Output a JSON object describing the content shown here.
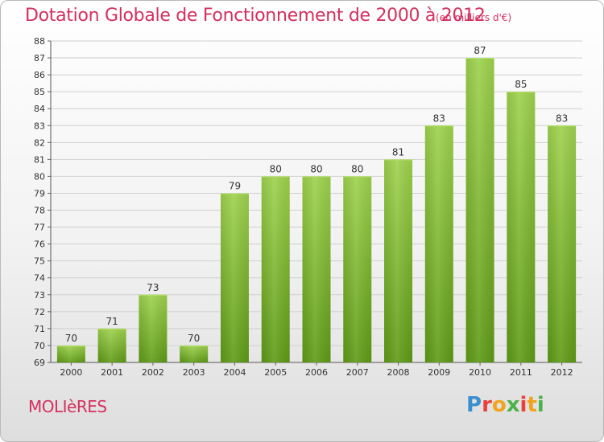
{
  "header": {
    "title": "Dotation Globale de Fonctionnement de 2000 à 2012",
    "subtitle": "(en milliers d'€)"
  },
  "footer": {
    "commune": "MOLIèRES",
    "logo_text": "Proxiti"
  },
  "colors": {
    "title": "#d4305f",
    "bar_light": "#9ed24d",
    "bar_dark": "#5e9a16",
    "grid": "#d0d0d0"
  },
  "chart_data": {
    "type": "bar",
    "title": "Dotation Globale de Fonctionnement de 2000 à 2012",
    "subtitle": "(en milliers d'€)",
    "categories": [
      "2000",
      "2001",
      "2002",
      "2003",
      "2004",
      "2005",
      "2006",
      "2007",
      "2008",
      "2009",
      "2010",
      "2011",
      "2012"
    ],
    "values": [
      70,
      71,
      73,
      70,
      79,
      80,
      80,
      80,
      81,
      83,
      87,
      85,
      83
    ],
    "ylim": [
      69,
      88
    ],
    "yticks": [
      69,
      70,
      71,
      72,
      73,
      74,
      75,
      76,
      77,
      78,
      79,
      80,
      81,
      82,
      83,
      84,
      85,
      86,
      87,
      88
    ],
    "grid": true,
    "data_labels": true
  }
}
